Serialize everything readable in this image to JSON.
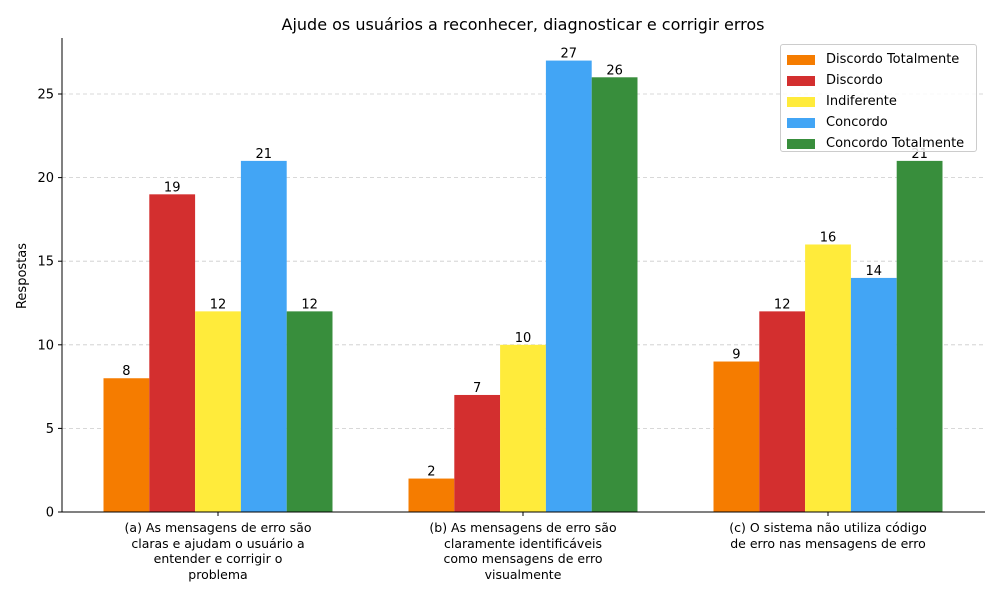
{
  "chart_data": {
    "type": "bar",
    "title": "Ajude os usuários a reconhecer, diagnosticar e corrigir erros",
    "xlabel": "",
    "ylabel": "Respostas",
    "ylim": [
      0,
      28.35
    ],
    "yticks": [
      0,
      5,
      10,
      15,
      20,
      25
    ],
    "grid": "y-dashed",
    "legend_position": "top-right",
    "categories": [
      "(a) As mensagens de erro são\nclaras e ajudam o usuário a\nentender e corrigir o\nproblema",
      "(b) As mensagens de erro são\nclaramente identificáveis\ncomo mensagens de erro\nvisualmente",
      "(c) O sistema não utiliza código\nde erro nas mensagens de erro"
    ],
    "series": [
      {
        "name": "Discordo Totalmente",
        "color": "#f57c00",
        "values": [
          8,
          2,
          9
        ]
      },
      {
        "name": "Discordo",
        "color": "#d32f2f",
        "values": [
          19,
          7,
          12
        ]
      },
      {
        "name": "Indiferente",
        "color": "#ffeb3b",
        "values": [
          12,
          10,
          16
        ]
      },
      {
        "name": "Concordo",
        "color": "#42a5f5",
        "values": [
          21,
          27,
          14
        ]
      },
      {
        "name": "Concordo Totalmente",
        "color": "#388e3c",
        "values": [
          12,
          26,
          21
        ]
      }
    ]
  }
}
